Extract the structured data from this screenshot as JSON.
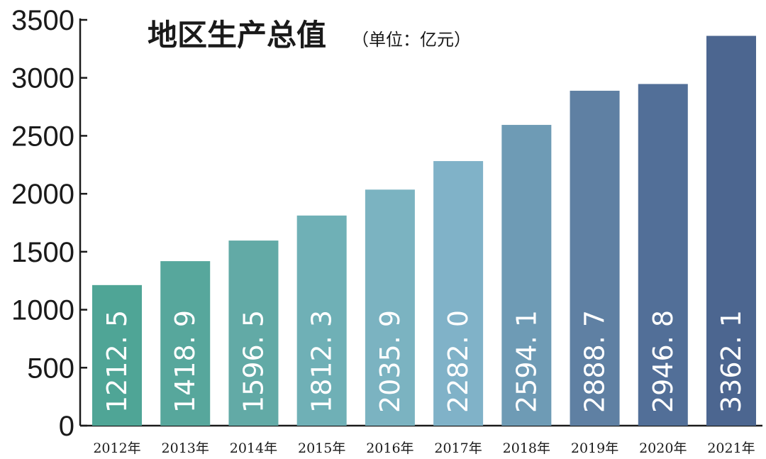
{
  "chart_data": {
    "type": "bar",
    "title": "地区生产总值",
    "subtitle": "（单位：亿元）",
    "categories": [
      "2012年",
      "2013年",
      "2014年",
      "2015年",
      "2016年",
      "2017年",
      "2018年",
      "2019年",
      "2020年",
      "2021年"
    ],
    "values": [
      1212.5,
      1418.9,
      1596.5,
      1812.3,
      2035.9,
      2282.0,
      2594.1,
      2888.7,
      2946.8,
      3362.1
    ],
    "value_labels": [
      "1212. 5",
      "1418. 9",
      "1596. 5",
      "1812. 3",
      "2035. 9",
      "2282. 0",
      "2594. 1",
      "2888. 7",
      "2946. 8",
      "3362. 1"
    ],
    "yticks": [
      0,
      500,
      1000,
      1500,
      2000,
      2500,
      3000,
      3500
    ],
    "ytick_labels": [
      "0",
      "500",
      "1000",
      "1500",
      "2000",
      "2500",
      "3000",
      "3500"
    ],
    "ylim": [
      0,
      3500
    ],
    "grid": false,
    "bar_colors": [
      "#4fa596",
      "#57a79c",
      "#62aaa6",
      "#6fb0b6",
      "#7bb3c1",
      "#80b2c8",
      "#6e9bb5",
      "#5f80a3",
      "#526f98",
      "#4c6690"
    ]
  }
}
